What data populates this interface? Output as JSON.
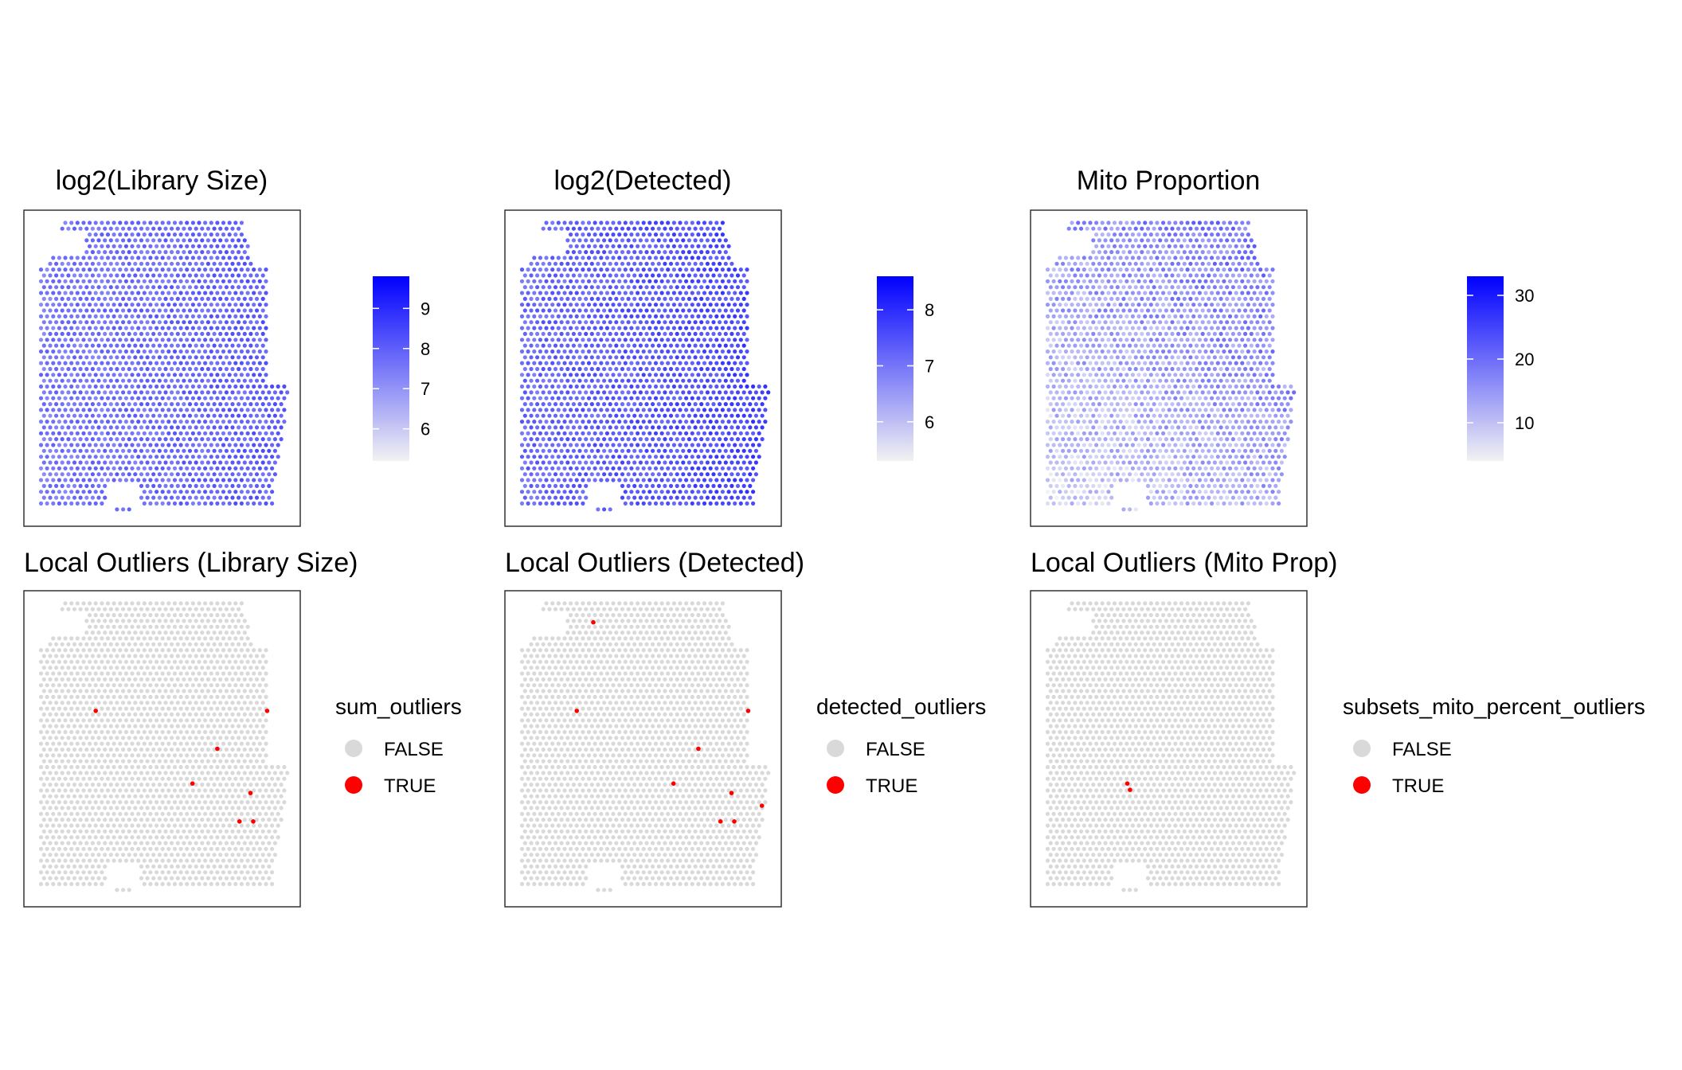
{
  "palette": {
    "low": "#f2f2f2",
    "high": "#0000ff",
    "false_color": "#d9d9d9",
    "true_color": "#ff0000"
  },
  "chart_data": [
    {
      "type": "scatter",
      "title": "log2(Library Size)",
      "color_scale": {
        "name": "",
        "min": 5.2,
        "max": 9.8,
        "breaks": [
          9,
          8,
          7,
          6
        ]
      },
      "spatial_gradient": {
        "tissue_center_value": 7.9,
        "spread": 0.45
      }
    },
    {
      "type": "scatter",
      "title": "log2(Detected)",
      "color_scale": {
        "name": "",
        "min": 5.3,
        "max": 8.6,
        "breaks": [
          8,
          7,
          6
        ]
      },
      "spatial_gradient": {
        "tissue_center_value": 7.5,
        "spread": 0.35
      }
    },
    {
      "type": "scatter",
      "title": "Mito Proportion",
      "color_scale": {
        "name": "",
        "min": 4,
        "max": 33,
        "breaks": [
          30,
          20,
          10
        ]
      },
      "spatial_gradient": {
        "tissue_center_value": 14,
        "spread": 5
      }
    },
    {
      "type": "scatter",
      "title": "Local Outliers (Library Size)",
      "legend": {
        "title": "sum_outliers",
        "entries": [
          "FALSE",
          "TRUE"
        ]
      },
      "outliers": [
        [
          0.26,
          0.38
        ],
        [
          0.88,
          0.38
        ],
        [
          0.7,
          0.5
        ],
        [
          0.61,
          0.61
        ],
        [
          0.82,
          0.64
        ],
        [
          0.78,
          0.73
        ],
        [
          0.83,
          0.73
        ]
      ]
    },
    {
      "type": "scatter",
      "title": "Local Outliers (Detected)",
      "legend": {
        "title": "detected_outliers",
        "entries": [
          "FALSE",
          "TRUE"
        ]
      },
      "outliers": [
        [
          0.32,
          0.1
        ],
        [
          0.26,
          0.38
        ],
        [
          0.88,
          0.38
        ],
        [
          0.7,
          0.5
        ],
        [
          0.61,
          0.61
        ],
        [
          0.82,
          0.64
        ],
        [
          0.78,
          0.73
        ],
        [
          0.83,
          0.73
        ],
        [
          0.93,
          0.68
        ]
      ]
    },
    {
      "type": "scatter",
      "title": "Local Outliers (Mito Prop)",
      "legend": {
        "title": "subsets_mito_percent_outliers",
        "entries": [
          "FALSE",
          "TRUE"
        ]
      },
      "outliers": [
        [
          0.35,
          0.61
        ],
        [
          0.36,
          0.63
        ]
      ]
    }
  ]
}
